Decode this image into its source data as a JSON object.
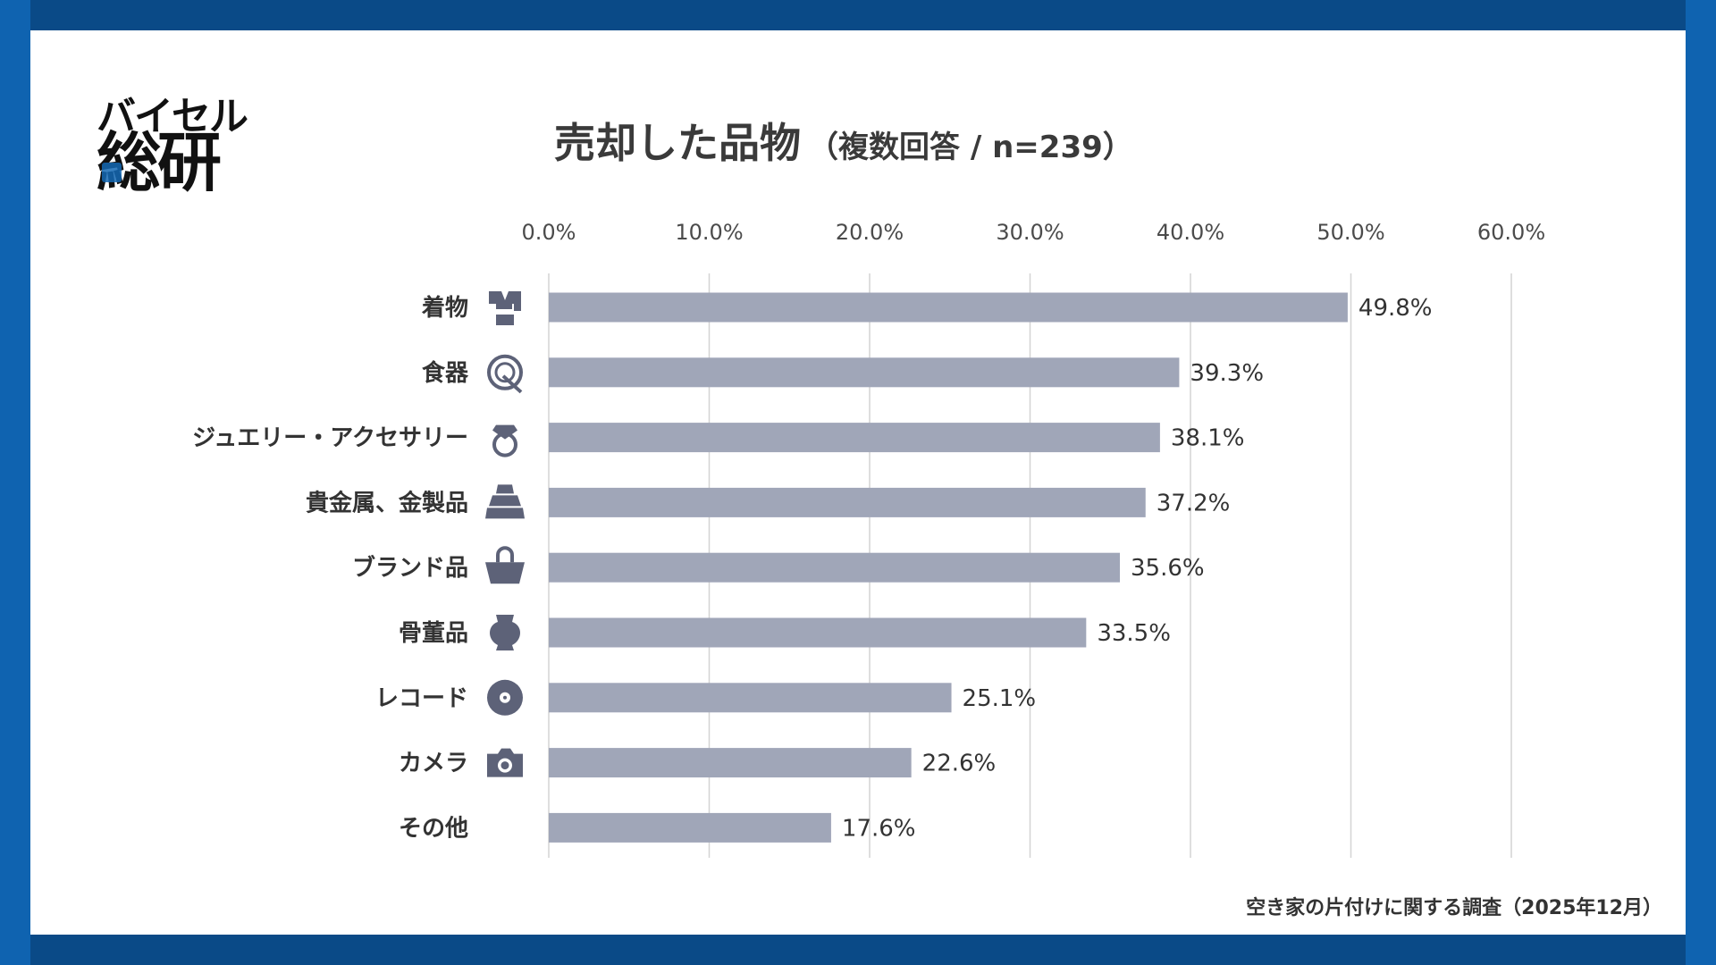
{
  "logo": {
    "brand": "バイセル",
    "sub": "総研"
  },
  "title": {
    "main": "売却した品物",
    "sub": "（複数回答 / n=239）"
  },
  "footer": {
    "source": "空き家の片付けに関する調査（2025年12月）"
  },
  "colors": {
    "bar": "#a0a6b8",
    "icon": "#5d6278",
    "grid": "#d4d4d4",
    "frame": "#0a4a87"
  },
  "chart_data": {
    "type": "bar",
    "orientation": "horizontal",
    "title": "売却した品物（複数回答 / n=239）",
    "categories": [
      "着物",
      "食器",
      "ジュエリー・アクセサリー",
      "貴金属、金製品",
      "ブランド品",
      "骨董品",
      "レコード",
      "カメラ",
      "その他"
    ],
    "icons": [
      "kimono-icon",
      "dish-icon",
      "ring-icon",
      "gold-bar-icon",
      "handbag-icon",
      "vase-icon",
      "record-icon",
      "camera-icon",
      ""
    ],
    "values": [
      49.8,
      39.3,
      38.1,
      37.2,
      35.6,
      33.5,
      25.1,
      22.6,
      17.6
    ],
    "value_labels": [
      "49.8%",
      "39.3%",
      "38.1%",
      "37.2%",
      "35.6%",
      "33.5%",
      "25.1%",
      "22.6%",
      "17.6%"
    ],
    "xlim": [
      0,
      60
    ],
    "ticks": [
      0,
      10,
      20,
      30,
      40,
      50,
      60
    ],
    "tick_labels": [
      "0.0%",
      "10.0%",
      "20.0%",
      "30.0%",
      "40.0%",
      "50.0%",
      "60.0%"
    ],
    "grid": true,
    "xlabel": "",
    "ylabel": ""
  }
}
